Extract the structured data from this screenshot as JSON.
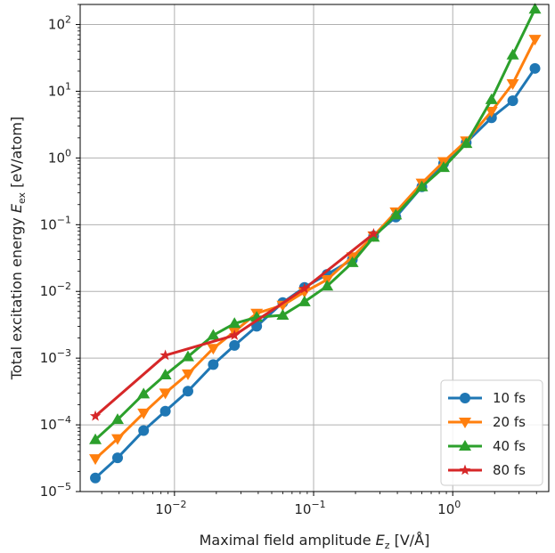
{
  "chart_data": {
    "type": "line",
    "title": "",
    "xlabel": "Maximal field amplitude E_z [V/Å]",
    "ylabel": "Total excitation energy E_ex [eV/atom]",
    "xscale": "log",
    "yscale": "log",
    "xlim": [
      0.0021,
      4.9
    ],
    "ylim": [
      1e-05,
      200
    ],
    "x_ticks": [
      {
        "value": 0.01,
        "base": "10",
        "exp": "−2"
      },
      {
        "value": 0.1,
        "base": "10",
        "exp": "−1"
      },
      {
        "value": 1,
        "base": "10",
        "exp": "0"
      }
    ],
    "y_ticks": [
      {
        "value": 1e-05,
        "base": "10",
        "exp": "−5"
      },
      {
        "value": 0.0001,
        "base": "10",
        "exp": "−4"
      },
      {
        "value": 0.001,
        "base": "10",
        "exp": "−3"
      },
      {
        "value": 0.01,
        "base": "10",
        "exp": "−2"
      },
      {
        "value": 0.1,
        "base": "10",
        "exp": "−1"
      },
      {
        "value": 1,
        "base": "10",
        "exp": "0"
      },
      {
        "value": 10,
        "base": "10",
        "exp": "1"
      },
      {
        "value": 100,
        "base": "10",
        "exp": "2"
      }
    ],
    "grid": true,
    "legend_position": "lower-right",
    "series": [
      {
        "name": "10 fs",
        "color": "#1f77b4",
        "marker": "circle",
        "x": [
          0.0027,
          0.0039,
          0.006,
          0.0086,
          0.0125,
          0.019,
          0.027,
          0.039,
          0.06,
          0.086,
          0.125,
          0.19,
          0.27,
          0.39,
          0.6,
          0.86,
          1.25,
          1.9,
          2.7,
          3.9
        ],
        "y": [
          1.6e-05,
          3.2e-05,
          8.2e-05,
          0.00016,
          0.00032,
          0.0008,
          0.00155,
          0.003,
          0.0068,
          0.0115,
          0.018,
          0.03,
          0.068,
          0.13,
          0.37,
          0.83,
          1.7,
          4.0,
          7.2,
          22
        ]
      },
      {
        "name": "20 fs",
        "color": "#ff7f0e",
        "marker": "triangle-down",
        "x": [
          0.0027,
          0.0039,
          0.006,
          0.0086,
          0.0125,
          0.019,
          0.027,
          0.039,
          0.06,
          0.086,
          0.125,
          0.19,
          0.27,
          0.39,
          0.6,
          0.86,
          1.25,
          1.9,
          2.7,
          3.9
        ],
        "y": [
          3.1e-05,
          6.2e-05,
          0.00015,
          0.0003,
          0.00058,
          0.0014,
          0.0025,
          0.0047,
          0.0062,
          0.0098,
          0.015,
          0.033,
          0.068,
          0.155,
          0.42,
          0.88,
          1.8,
          5.0,
          13,
          60
        ]
      },
      {
        "name": "40 fs",
        "color": "#2ca02c",
        "marker": "triangle-up",
        "x": [
          0.0027,
          0.0039,
          0.006,
          0.0086,
          0.0125,
          0.019,
          0.027,
          0.039,
          0.06,
          0.086,
          0.125,
          0.19,
          0.27,
          0.39,
          0.6,
          0.86,
          1.25,
          1.9,
          2.7,
          3.9
        ],
        "y": [
          6e-05,
          0.00012,
          0.00029,
          0.00056,
          0.00105,
          0.0022,
          0.0033,
          0.0041,
          0.0044,
          0.007,
          0.012,
          0.027,
          0.065,
          0.14,
          0.37,
          0.72,
          1.65,
          7.5,
          35,
          170
        ]
      },
      {
        "name": "80 fs",
        "color": "#d62728",
        "marker": "star",
        "x": [
          0.0027,
          0.0086,
          0.027,
          0.086,
          0.27
        ],
        "y": [
          0.000135,
          0.0011,
          0.0022,
          0.011,
          0.073
        ]
      }
    ]
  }
}
